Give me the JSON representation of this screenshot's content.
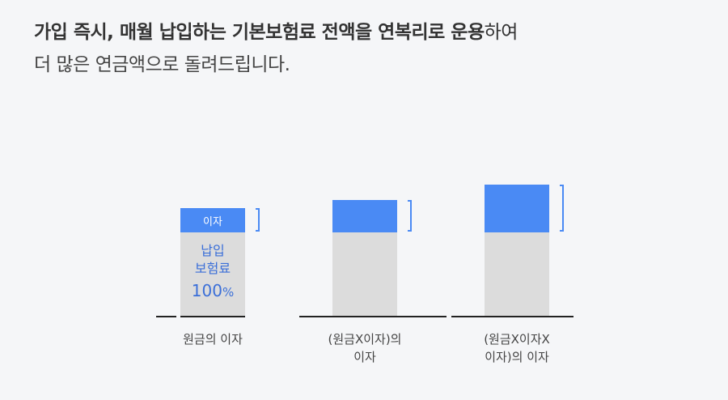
{
  "headline": {
    "line1_bold": "가입 즉시, 매월 납입하는 기본보험료 전액을 연복리로 운용",
    "line1_rest": "하여",
    "line2": "더 많은 연금액으로 돌려드립니다."
  },
  "columns": [
    {
      "caption_l1": "원금의 이자",
      "caption_l2": "",
      "interest_label": "이자",
      "principal_l1": "납입",
      "principal_l2": "보험료",
      "principal_pct": "100",
      "principal_unit": "%"
    },
    {
      "caption_l1": "(원금X이자)의",
      "caption_l2": "이자"
    },
    {
      "caption_l1": "(원금X이자X",
      "caption_l2": "이자)의 이자"
    }
  ],
  "colors": {
    "interest": "#4a8af4",
    "principal": "#dcdcdc",
    "principal_text": "#3b6fd8"
  }
}
